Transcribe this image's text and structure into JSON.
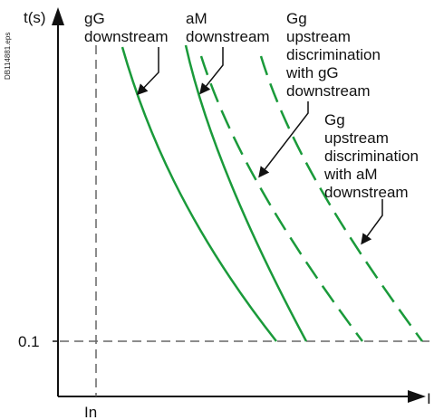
{
  "ref_code": "DB114881.eps",
  "axes": {
    "y_label": "t(s)",
    "x_label": "I",
    "y_tick_label": "0.1",
    "x_tick_label": "In"
  },
  "labels": {
    "gG_downstream": [
      "gG",
      "downstream"
    ],
    "aM_downstream": [
      "aM",
      "downstream"
    ],
    "gg_upstream_gG": [
      "Gg",
      "upstream",
      "discrimination",
      "with gG",
      "downstream"
    ],
    "gg_upstream_aM": [
      "Gg",
      "upstream",
      "discrimination",
      "with aM",
      "downstream"
    ]
  },
  "curves": [
    {
      "id": "gG-downstream",
      "style": "solid"
    },
    {
      "id": "aM-downstream",
      "style": "solid"
    },
    {
      "id": "gg-upstream-with-gG",
      "style": "dashed"
    },
    {
      "id": "gg-upstream-with-aM",
      "style": "dashed"
    }
  ],
  "colors": {
    "curve": "#1a9a3a",
    "axis": "#111111",
    "guide": "#666666",
    "text": "#111111"
  }
}
